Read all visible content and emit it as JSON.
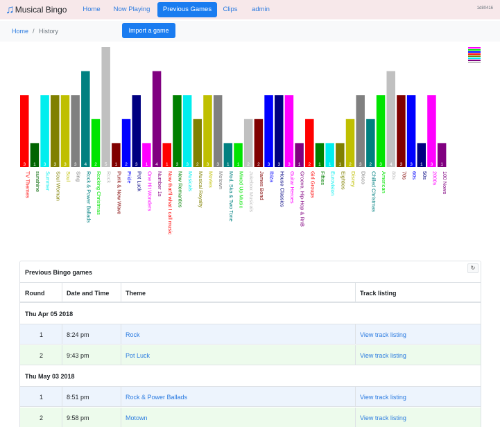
{
  "navbar": {
    "brand_icon": "music-note-icon",
    "brand": "Musical Bingo",
    "items": [
      {
        "label": "Home",
        "active": false
      },
      {
        "label": "Now Playing",
        "active": false
      },
      {
        "label": "Previous Games",
        "active": true
      },
      {
        "label": "Clips",
        "active": false
      },
      {
        "label": "admin",
        "active": false
      }
    ],
    "build": "1d80416"
  },
  "breadcrumb": {
    "home": "Home",
    "separator": "/",
    "current": "History"
  },
  "import_button": "Import a game",
  "chart_data": {
    "type": "bar",
    "legend_icon": "legend-toggle-icon",
    "categories": [
      "TV Themes",
      "sunshine",
      "Summer",
      "Soul Woman",
      "Soul",
      "Sing",
      "Rock & Power Ballads",
      "Rocking Christmas",
      "Rock",
      "Punk & New Wave",
      "Pride",
      "Pot Luck",
      "One Hit Wonders",
      "Number 1s",
      "Now that'll what I call music",
      "New Romantics",
      "Musicals",
      "Musical Royalty",
      "Movies",
      "Motown",
      "Mod, Ska & Two Tone",
      "Mixed Up Music",
      "Jukebox Musicals",
      "James Bond",
      "Ibiza",
      "House Classics",
      "Guitar Heroes",
      "Groove, Hip-Hop & RnB",
      "Girl Groups",
      "Fifties",
      "Eurovision",
      "Eighties",
      "Disney",
      "Disco",
      "Chilled Christmas",
      "American",
      "80s",
      "70s",
      "60s",
      "50s",
      "2000s",
      "100 Nows"
    ],
    "values": [
      3,
      1,
      3,
      3,
      3,
      3,
      4,
      2,
      5,
      1,
      2,
      3,
      1,
      4,
      1,
      3,
      3,
      2,
      3,
      3,
      1,
      1,
      2,
      2,
      3,
      3,
      3,
      1,
      2,
      1,
      1,
      1,
      2,
      3,
      2,
      3,
      4,
      3,
      3,
      1,
      3,
      1
    ],
    "colors": [
      "#ff0000",
      "#006400",
      "#00eeee",
      "#808000",
      "#bfbf00",
      "#808080",
      "#008080",
      "#00e400",
      "#c0c0c0",
      "#800000",
      "#0000ff",
      "#000080",
      "#ff00ff",
      "#800080",
      "#ff0000",
      "#008000",
      "#00eeee",
      "#808000",
      "#bfbf00",
      "#808080",
      "#008080",
      "#00e400",
      "#c0c0c0",
      "#800000",
      "#0000ff",
      "#000080",
      "#ff00ff",
      "#800080",
      "#ff0000",
      "#008000",
      "#00eeee",
      "#808000",
      "#bfbf00",
      "#808080",
      "#008080",
      "#00e400",
      "#c0c0c0",
      "#800000",
      "#0000ff",
      "#000080",
      "#ff00ff",
      "#800080"
    ],
    "ylim": [
      0,
      5
    ]
  },
  "games_card": {
    "title": "Previous Bingo games",
    "refresh_icon": "refresh-icon",
    "refresh_glyph": "↻",
    "columns": [
      "Round",
      "Date and Time",
      "Theme",
      "Track listing"
    ],
    "groups": [
      {
        "date": "Thu Apr 05 2018",
        "rows": [
          {
            "round": "1",
            "time": "8:24 pm",
            "theme": "Rock",
            "link": "View track listing"
          },
          {
            "round": "2",
            "time": "9:43 pm",
            "theme": "Pot Luck",
            "link": "View track listing"
          }
        ]
      },
      {
        "date": "Thu May 03 2018",
        "rows": [
          {
            "round": "1",
            "time": "8:51 pm",
            "theme": "Rock & Power Ballads",
            "link": "View track listing"
          },
          {
            "round": "2",
            "time": "9:58 pm",
            "theme": "Motown",
            "link": "View track listing"
          }
        ]
      }
    ]
  }
}
